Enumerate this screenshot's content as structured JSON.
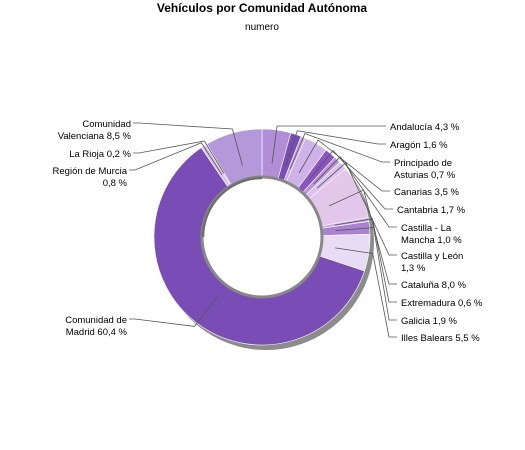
{
  "chart_data": {
    "type": "pie",
    "title": "Vehículos por Comunidad Autónoma",
    "subtitle": "numero",
    "slices": [
      {
        "label": [
          "Andalucía 4,3 %"
        ],
        "value": 4.3,
        "color": "#b18ed6"
      },
      {
        "label": [
          "Aragón 1,6 %"
        ],
        "value": 1.6,
        "color": "#7a4cb5"
      },
      {
        "label": [
          "Principado de",
          "Asturias 0,7 %"
        ],
        "value": 0.7,
        "color": "#c5a8e3"
      },
      {
        "label": [
          "Canarias 3,5 %"
        ],
        "value": 3.5,
        "color": "#cfb3e8"
      },
      {
        "label": [
          "Cantabria 1,7 %"
        ],
        "value": 1.7,
        "color": "#8a55c0"
      },
      {
        "label": [
          "Castilla - La",
          "Mancha 1,0 %"
        ],
        "value": 1.0,
        "color": "#b792d8"
      },
      {
        "label": [
          "Castilla y León",
          "1,3 %"
        ],
        "value": 1.3,
        "color": "#d9c2ee"
      },
      {
        "label": [
          "Cataluña 8,0 %"
        ],
        "value": 8.0,
        "color": "#e3c7eb"
      },
      {
        "label": [
          "Extremadura 0,6 %"
        ],
        "value": 0.6,
        "color": "#c9a9e2"
      },
      {
        "label": [
          "Galicia 1,9 %"
        ],
        "value": 1.9,
        "color": "#a982d1"
      },
      {
        "label": [
          "Illes Balears 5,5 %"
        ],
        "value": 5.5,
        "color": "#e8dcf4"
      },
      {
        "label": [
          "Comunidad de",
          "Madrid 60,4 %"
        ],
        "value": 60.4,
        "color": "#7a4cb5"
      },
      {
        "label": [
          "Región de Murcia",
          "0,8 %"
        ],
        "value": 0.8,
        "color": "#d6c4ea"
      },
      {
        "label": [
          "La Rioja 0,2 %"
        ],
        "value": 0.2,
        "color": "#9a70c9"
      },
      {
        "label": [
          "Comunidad",
          "Valenciana 8,5 %"
        ],
        "value": 8.5,
        "color": "#b598d9"
      }
    ]
  }
}
